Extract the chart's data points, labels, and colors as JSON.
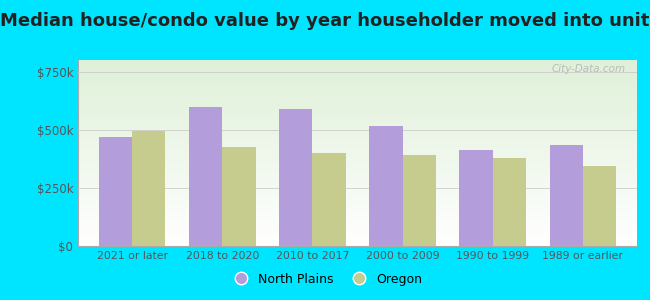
{
  "title": "Median house/condo value by year householder moved into unit",
  "categories": [
    "2021 or later",
    "2018 to 2020",
    "2010 to 2017",
    "2000 to 2009",
    "1990 to 1999",
    "1989 or earlier"
  ],
  "north_plains": [
    470000,
    600000,
    590000,
    515000,
    415000,
    435000
  ],
  "oregon": [
    495000,
    425000,
    400000,
    390000,
    380000,
    345000
  ],
  "bar_color_np": "#b39ddb",
  "bar_color_or": "#c5cc8e",
  "background_outer": "#00e5ff",
  "yticks": [
    0,
    250000,
    500000,
    750000
  ],
  "ytick_labels": [
    "$0",
    "$250k",
    "$500k",
    "$750k"
  ],
  "legend_np": "North Plains",
  "legend_or": "Oregon",
  "title_fontsize": 13.0,
  "watermark": "City-Data.com"
}
